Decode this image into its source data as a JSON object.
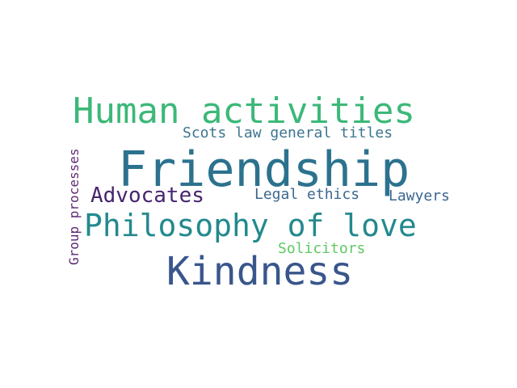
{
  "words": [
    {
      "id": "human",
      "text": "Human activities",
      "color": "#3cb878"
    },
    {
      "id": "scots",
      "text": "Scots law general titles",
      "color": "#3d7590"
    },
    {
      "id": "friendship",
      "text": "Friendship",
      "color": "#2c728e"
    },
    {
      "id": "advocates",
      "text": "Advocates",
      "color": "#46256e"
    },
    {
      "id": "legal",
      "text": "Legal ethics",
      "color": "#3b6790"
    },
    {
      "id": "lawyers",
      "text": "Lawyers",
      "color": "#3b6790"
    },
    {
      "id": "philosophy",
      "text": "Philosophy of love",
      "color": "#23898e"
    },
    {
      "id": "solicitors",
      "text": "Solicitors",
      "color": "#5ec962"
    },
    {
      "id": "kindness",
      "text": "Kindness",
      "color": "#39568c"
    },
    {
      "id": "group",
      "text": "Group processes",
      "color": "#5c2a72"
    }
  ]
}
